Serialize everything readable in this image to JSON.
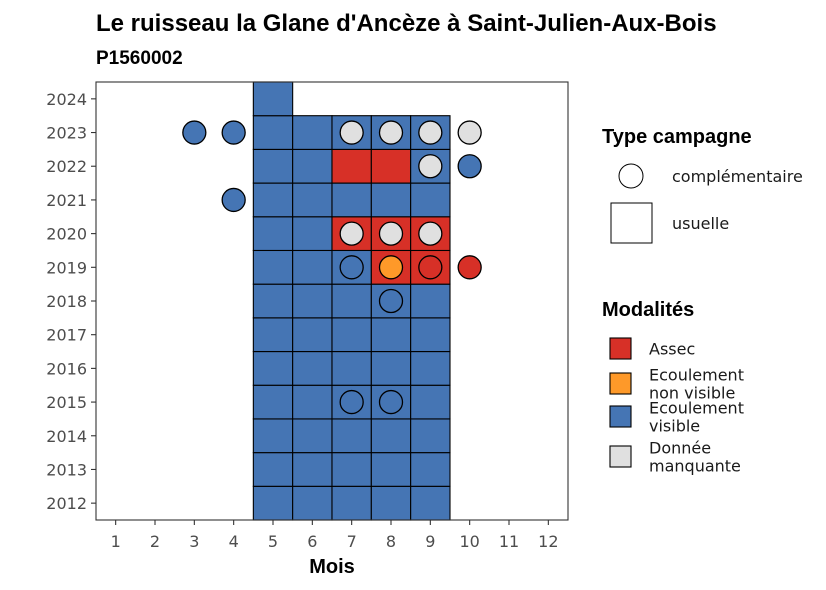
{
  "chart_data": {
    "type": "heatmap",
    "title": "Le ruisseau la Glane d'Ancèze à Saint-Julien-Aux-Bois",
    "subtitle": "P1560002",
    "xlabel": "Mois",
    "ylabel": "",
    "x_ticks": [
      "1",
      "2",
      "3",
      "4",
      "5",
      "6",
      "7",
      "8",
      "9",
      "10",
      "11",
      "12"
    ],
    "y_ticks": [
      "2012",
      "2013",
      "2014",
      "2015",
      "2016",
      "2017",
      "2018",
      "2019",
      "2020",
      "2021",
      "2022",
      "2023",
      "2024"
    ],
    "xlim": [
      0.5,
      12.5
    ],
    "ylim": [
      2011.5,
      2024.5
    ],
    "grid": false,
    "legend_position": "right",
    "legend_shape": {
      "title": "Type campagne",
      "items": [
        {
          "key": "complementaire",
          "label": "complémentaire",
          "shape": "circle"
        },
        {
          "key": "usuelle",
          "label": "usuelle",
          "shape": "square"
        }
      ]
    },
    "legend_color": {
      "title": "Modalités",
      "items": [
        {
          "key": "assec",
          "lines": [
            "Assec"
          ],
          "color": "#d73027"
        },
        {
          "key": "non_visible",
          "lines": [
            "Ecoulement",
            "non visible"
          ],
          "color": "#fe9929"
        },
        {
          "key": "visible",
          "lines": [
            "Ecoulement",
            "visible"
          ],
          "color": "#4575b4"
        },
        {
          "key": "manquante",
          "lines": [
            "Donnée",
            "manquante"
          ],
          "color": "#e0e0e0"
        }
      ]
    },
    "usuelle": [
      {
        "year": 2012,
        "month": 5,
        "mod": "visible"
      },
      {
        "year": 2012,
        "month": 6,
        "mod": "visible"
      },
      {
        "year": 2012,
        "month": 7,
        "mod": "visible"
      },
      {
        "year": 2012,
        "month": 8,
        "mod": "visible"
      },
      {
        "year": 2012,
        "month": 9,
        "mod": "visible"
      },
      {
        "year": 2013,
        "month": 5,
        "mod": "visible"
      },
      {
        "year": 2013,
        "month": 6,
        "mod": "visible"
      },
      {
        "year": 2013,
        "month": 7,
        "mod": "visible"
      },
      {
        "year": 2013,
        "month": 8,
        "mod": "visible"
      },
      {
        "year": 2013,
        "month": 9,
        "mod": "visible"
      },
      {
        "year": 2014,
        "month": 5,
        "mod": "visible"
      },
      {
        "year": 2014,
        "month": 6,
        "mod": "visible"
      },
      {
        "year": 2014,
        "month": 7,
        "mod": "visible"
      },
      {
        "year": 2014,
        "month": 8,
        "mod": "visible"
      },
      {
        "year": 2014,
        "month": 9,
        "mod": "visible"
      },
      {
        "year": 2015,
        "month": 5,
        "mod": "visible"
      },
      {
        "year": 2015,
        "month": 6,
        "mod": "visible"
      },
      {
        "year": 2015,
        "month": 7,
        "mod": "visible"
      },
      {
        "year": 2015,
        "month": 8,
        "mod": "visible"
      },
      {
        "year": 2015,
        "month": 9,
        "mod": "visible"
      },
      {
        "year": 2016,
        "month": 5,
        "mod": "visible"
      },
      {
        "year": 2016,
        "month": 6,
        "mod": "visible"
      },
      {
        "year": 2016,
        "month": 7,
        "mod": "visible"
      },
      {
        "year": 2016,
        "month": 8,
        "mod": "visible"
      },
      {
        "year": 2016,
        "month": 9,
        "mod": "visible"
      },
      {
        "year": 2017,
        "month": 5,
        "mod": "visible"
      },
      {
        "year": 2017,
        "month": 6,
        "mod": "visible"
      },
      {
        "year": 2017,
        "month": 7,
        "mod": "visible"
      },
      {
        "year": 2017,
        "month": 8,
        "mod": "visible"
      },
      {
        "year": 2017,
        "month": 9,
        "mod": "visible"
      },
      {
        "year": 2018,
        "month": 5,
        "mod": "visible"
      },
      {
        "year": 2018,
        "month": 6,
        "mod": "visible"
      },
      {
        "year": 2018,
        "month": 7,
        "mod": "visible"
      },
      {
        "year": 2018,
        "month": 8,
        "mod": "visible"
      },
      {
        "year": 2018,
        "month": 9,
        "mod": "visible"
      },
      {
        "year": 2019,
        "month": 5,
        "mod": "visible"
      },
      {
        "year": 2019,
        "month": 6,
        "mod": "visible"
      },
      {
        "year": 2019,
        "month": 7,
        "mod": "visible"
      },
      {
        "year": 2019,
        "month": 8,
        "mod": "assec"
      },
      {
        "year": 2019,
        "month": 9,
        "mod": "assec"
      },
      {
        "year": 2020,
        "month": 5,
        "mod": "visible"
      },
      {
        "year": 2020,
        "month": 6,
        "mod": "visible"
      },
      {
        "year": 2020,
        "month": 7,
        "mod": "assec"
      },
      {
        "year": 2020,
        "month": 8,
        "mod": "assec"
      },
      {
        "year": 2020,
        "month": 9,
        "mod": "assec"
      },
      {
        "year": 2021,
        "month": 5,
        "mod": "visible"
      },
      {
        "year": 2021,
        "month": 6,
        "mod": "visible"
      },
      {
        "year": 2021,
        "month": 7,
        "mod": "visible"
      },
      {
        "year": 2021,
        "month": 8,
        "mod": "visible"
      },
      {
        "year": 2021,
        "month": 9,
        "mod": "visible"
      },
      {
        "year": 2022,
        "month": 5,
        "mod": "visible"
      },
      {
        "year": 2022,
        "month": 6,
        "mod": "visible"
      },
      {
        "year": 2022,
        "month": 7,
        "mod": "assec"
      },
      {
        "year": 2022,
        "month": 8,
        "mod": "assec"
      },
      {
        "year": 2022,
        "month": 9,
        "mod": "visible"
      },
      {
        "year": 2023,
        "month": 5,
        "mod": "visible"
      },
      {
        "year": 2023,
        "month": 6,
        "mod": "visible"
      },
      {
        "year": 2023,
        "month": 7,
        "mod": "visible"
      },
      {
        "year": 2023,
        "month": 8,
        "mod": "visible"
      },
      {
        "year": 2023,
        "month": 9,
        "mod": "visible"
      },
      {
        "year": 2024,
        "month": 5,
        "mod": "visible"
      }
    ],
    "complementaire": [
      {
        "year": 2023,
        "month": 3,
        "mod": "visible"
      },
      {
        "year": 2023,
        "month": 4,
        "mod": "visible"
      },
      {
        "year": 2023,
        "month": 7,
        "mod": "manquante"
      },
      {
        "year": 2023,
        "month": 8,
        "mod": "manquante"
      },
      {
        "year": 2023,
        "month": 9,
        "mod": "manquante"
      },
      {
        "year": 2023,
        "month": 10,
        "mod": "manquante"
      },
      {
        "year": 2022,
        "month": 9,
        "mod": "manquante"
      },
      {
        "year": 2022,
        "month": 10,
        "mod": "visible"
      },
      {
        "year": 2021,
        "month": 4,
        "mod": "visible"
      },
      {
        "year": 2020,
        "month": 7,
        "mod": "manquante"
      },
      {
        "year": 2020,
        "month": 8,
        "mod": "manquante"
      },
      {
        "year": 2020,
        "month": 9,
        "mod": "manquante"
      },
      {
        "year": 2019,
        "month": 7,
        "mod": "visible"
      },
      {
        "year": 2019,
        "month": 8,
        "mod": "non_visible"
      },
      {
        "year": 2019,
        "month": 9,
        "mod": "assec"
      },
      {
        "year": 2019,
        "month": 10,
        "mod": "assec"
      },
      {
        "year": 2018,
        "month": 8,
        "mod": "visible"
      },
      {
        "year": 2015,
        "month": 7,
        "mod": "visible"
      },
      {
        "year": 2015,
        "month": 8,
        "mod": "visible"
      }
    ]
  }
}
